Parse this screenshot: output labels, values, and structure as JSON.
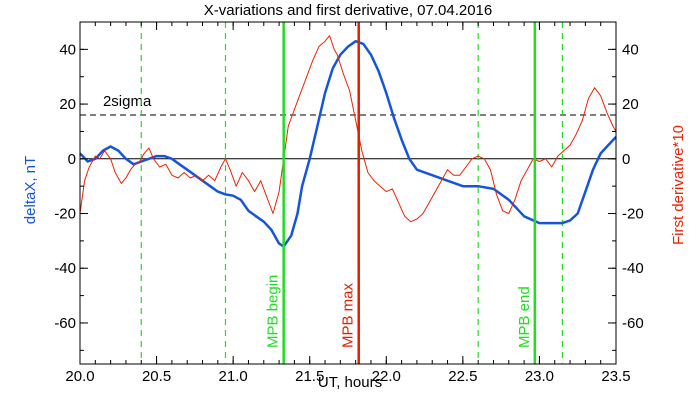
{
  "chart_data": {
    "type": "line",
    "title": "X-variations and first derivative, 07.04.2016",
    "xlabel": "UT, hours",
    "ylabel_left": "deltaX, nT",
    "ylabel_right": "First derivative*10",
    "xlim": [
      20.0,
      23.5
    ],
    "ylim": [
      -75,
      50
    ],
    "x_ticks": [
      "20.0",
      "20.5",
      "21.0",
      "21.5",
      "22.0",
      "22.5",
      "23.0",
      "23.5"
    ],
    "y_ticks_left": [
      "40",
      "20",
      "0",
      "-20",
      "-40",
      "-60"
    ],
    "y_ticks_right": [
      "40",
      "20",
      "0",
      "-20",
      "-40",
      "-60"
    ],
    "threshold": {
      "label": "2sigma",
      "value": 16
    },
    "markers": [
      {
        "label": "MPB begin",
        "x": 21.33,
        "color": "#22dd22"
      },
      {
        "label": "MPB max",
        "x": 21.82,
        "color": "#dd2200"
      },
      {
        "label": "MPB end",
        "x": 22.97,
        "color": "#22dd22"
      }
    ],
    "dashed_verticals": [
      20.4,
      20.95,
      22.6,
      23.15
    ],
    "series": [
      {
        "name": "deltaX",
        "color": "#1555dd",
        "axis": "left",
        "points": [
          [
            20.0,
            2
          ],
          [
            20.05,
            -1
          ],
          [
            20.1,
            0
          ],
          [
            20.15,
            3
          ],
          [
            20.2,
            4.5
          ],
          [
            20.25,
            3
          ],
          [
            20.3,
            0
          ],
          [
            20.35,
            -2
          ],
          [
            20.4,
            -1
          ],
          [
            20.45,
            0
          ],
          [
            20.5,
            1
          ],
          [
            20.55,
            1
          ],
          [
            20.6,
            0
          ],
          [
            20.65,
            -2
          ],
          [
            20.7,
            -4
          ],
          [
            20.75,
            -6
          ],
          [
            20.8,
            -8
          ],
          [
            20.85,
            -10
          ],
          [
            20.9,
            -12
          ],
          [
            20.95,
            -13
          ],
          [
            21.0,
            -13.5
          ],
          [
            21.05,
            -15
          ],
          [
            21.1,
            -19
          ],
          [
            21.15,
            -21
          ],
          [
            21.2,
            -23
          ],
          [
            21.25,
            -26
          ],
          [
            21.3,
            -31
          ],
          [
            21.33,
            -32
          ],
          [
            21.38,
            -28
          ],
          [
            21.42,
            -20
          ],
          [
            21.45,
            -10
          ],
          [
            21.5,
            0
          ],
          [
            21.55,
            12
          ],
          [
            21.6,
            24
          ],
          [
            21.65,
            33
          ],
          [
            21.7,
            38
          ],
          [
            21.75,
            41
          ],
          [
            21.8,
            43
          ],
          [
            21.85,
            42
          ],
          [
            21.9,
            38
          ],
          [
            21.95,
            32
          ],
          [
            22.0,
            24
          ],
          [
            22.05,
            15
          ],
          [
            22.1,
            7
          ],
          [
            22.15,
            0
          ],
          [
            22.2,
            -4
          ],
          [
            22.3,
            -6
          ],
          [
            22.4,
            -8
          ],
          [
            22.5,
            -10
          ],
          [
            22.6,
            -10
          ],
          [
            22.7,
            -11
          ],
          [
            22.8,
            -15
          ],
          [
            22.9,
            -21
          ],
          [
            23.0,
            -23.5
          ],
          [
            23.1,
            -23.5
          ],
          [
            23.15,
            -23.5
          ],
          [
            23.2,
            -22.5
          ],
          [
            23.25,
            -20
          ],
          [
            23.3,
            -12
          ],
          [
            23.35,
            -4
          ],
          [
            23.4,
            2
          ],
          [
            23.45,
            5
          ],
          [
            23.5,
            8
          ]
        ]
      },
      {
        "name": "First derivative*10",
        "color": "#ee2200",
        "axis": "right",
        "points": [
          [
            20.0,
            -20
          ],
          [
            20.03,
            -8
          ],
          [
            20.06,
            -3
          ],
          [
            20.1,
            1
          ],
          [
            20.13,
            0
          ],
          [
            20.16,
            3
          ],
          [
            20.2,
            0
          ],
          [
            20.23,
            -5
          ],
          [
            20.27,
            -9
          ],
          [
            20.3,
            -7
          ],
          [
            20.33,
            -4
          ],
          [
            20.36,
            -2
          ],
          [
            20.39,
            -1
          ],
          [
            20.42,
            2
          ],
          [
            20.45,
            4
          ],
          [
            20.48,
            0
          ],
          [
            20.52,
            -3
          ],
          [
            20.56,
            -2
          ],
          [
            20.6,
            -6
          ],
          [
            20.64,
            -7
          ],
          [
            20.68,
            -5
          ],
          [
            20.72,
            -7
          ],
          [
            20.76,
            -6
          ],
          [
            20.8,
            -8
          ],
          [
            20.84,
            -6
          ],
          [
            20.88,
            -8
          ],
          [
            20.92,
            -3
          ],
          [
            20.95,
            0
          ],
          [
            20.98,
            -4
          ],
          [
            21.02,
            -10
          ],
          [
            21.06,
            -5
          ],
          [
            21.1,
            -8
          ],
          [
            21.14,
            -12
          ],
          [
            21.18,
            -8
          ],
          [
            21.22,
            -14
          ],
          [
            21.26,
            -20
          ],
          [
            21.3,
            -12
          ],
          [
            21.33,
            0
          ],
          [
            21.36,
            12
          ],
          [
            21.4,
            18
          ],
          [
            21.44,
            24
          ],
          [
            21.48,
            30
          ],
          [
            21.52,
            36
          ],
          [
            21.56,
            41
          ],
          [
            21.6,
            43
          ],
          [
            21.63,
            45
          ],
          [
            21.66,
            40
          ],
          [
            21.68,
            38
          ],
          [
            21.72,
            31
          ],
          [
            21.76,
            25
          ],
          [
            21.8,
            14
          ],
          [
            21.84,
            3
          ],
          [
            21.88,
            -5
          ],
          [
            21.92,
            -8
          ],
          [
            21.96,
            -10
          ],
          [
            22.0,
            -12
          ],
          [
            22.04,
            -11
          ],
          [
            22.08,
            -16
          ],
          [
            22.12,
            -21
          ],
          [
            22.16,
            -23
          ],
          [
            22.2,
            -22
          ],
          [
            22.24,
            -20
          ],
          [
            22.28,
            -16
          ],
          [
            22.32,
            -12
          ],
          [
            22.36,
            -8
          ],
          [
            22.4,
            -4
          ],
          [
            22.44,
            -6
          ],
          [
            22.48,
            -6
          ],
          [
            22.52,
            -3
          ],
          [
            22.56,
            0
          ],
          [
            22.6,
            1
          ],
          [
            22.64,
            0
          ],
          [
            22.68,
            -4
          ],
          [
            22.72,
            -13
          ],
          [
            22.76,
            -19
          ],
          [
            22.8,
            -20
          ],
          [
            22.84,
            -15
          ],
          [
            22.88,
            -8
          ],
          [
            22.92,
            -4
          ],
          [
            22.96,
            0
          ],
          [
            23.0,
            -1
          ],
          [
            23.04,
            0
          ],
          [
            23.08,
            -3
          ],
          [
            23.12,
            1
          ],
          [
            23.16,
            3
          ],
          [
            23.2,
            5
          ],
          [
            23.24,
            9
          ],
          [
            23.28,
            14
          ],
          [
            23.32,
            22
          ],
          [
            23.36,
            26
          ],
          [
            23.4,
            23
          ],
          [
            23.44,
            17
          ],
          [
            23.48,
            12
          ],
          [
            23.5,
            10
          ]
        ]
      }
    ],
    "grid": false,
    "legend": "none"
  }
}
